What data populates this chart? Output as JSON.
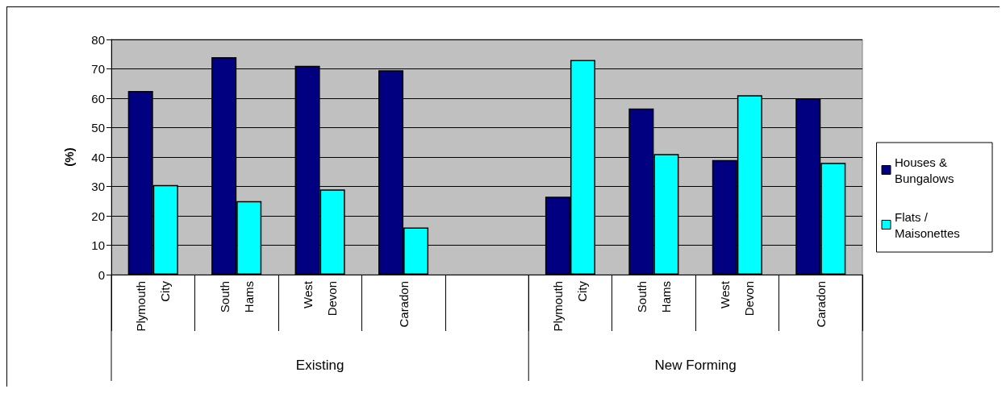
{
  "chart_data": {
    "type": "bar",
    "ylabel": "(%)",
    "categories": [
      "Plymouth City",
      "South Hams",
      "West Devon",
      "Caradon",
      null,
      "Plymouth City",
      "South Hams",
      "West Devon",
      "Caradon"
    ],
    "series": [
      {
        "name": "Houses & Bungalows",
        "color": "#000080",
        "values": [
          62.5,
          74,
          71,
          69.5,
          null,
          26.5,
          56.5,
          39,
          60
        ]
      },
      {
        "name": "Flats / Maisonettes",
        "color": "#00ffff",
        "values": [
          30.5,
          25,
          29,
          16,
          null,
          73,
          41,
          61,
          38
        ]
      }
    ],
    "annotations": [
      "Existing",
      "New Forming"
    ],
    "ylim": [
      0,
      80
    ],
    "yticks": [
      0,
      10,
      20,
      30,
      40,
      50,
      60,
      70,
      80
    ],
    "grid": "y",
    "legend": "right"
  }
}
